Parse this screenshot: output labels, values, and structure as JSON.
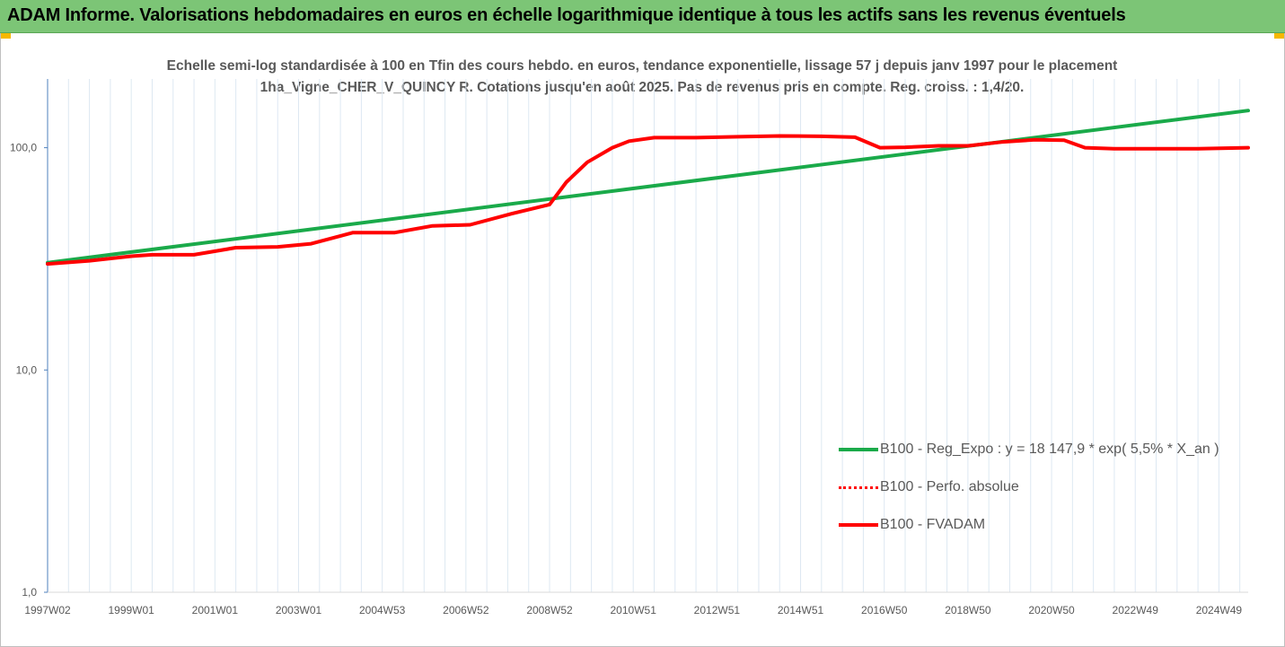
{
  "banner": {
    "title": "ADAM Informe. Valorisations hebdomadaires en euros en échelle logarithmique identique à tous les actifs sans les revenus éventuels",
    "color": "#7cc576"
  },
  "chart_data": {
    "type": "line",
    "title": "Echelle semi-log standardisée à 100 en Tfin des cours hebdo. en euros, tendance exponentielle, lissage 57 j depuis janv 1997 pour le placement 1ha_Vigne_CHER_V_QUINCY R. Cotations jusqu'en août 2025. Pas de revenus pris en compte. Reg. croiss. : 1,4/20.",
    "y_scale": "log",
    "ylim": [
      1,
      200
    ],
    "y_ticks": [
      {
        "value": 100,
        "label": "100,0"
      },
      {
        "value": 10,
        "label": "10,0"
      },
      {
        "value": 1,
        "label": "1,0"
      }
    ],
    "xlim": [
      1997.0,
      2025.7
    ],
    "x_ticks": [
      {
        "value": 1997.0,
        "label": "1997W02"
      },
      {
        "value": 1999.0,
        "label": "1999W01"
      },
      {
        "value": 2001.0,
        "label": "2001W01"
      },
      {
        "value": 2003.0,
        "label": "2003W01"
      },
      {
        "value": 2005.0,
        "label": "2004W53"
      },
      {
        "value": 2007.0,
        "label": "2006W52"
      },
      {
        "value": 2009.0,
        "label": "2008W52"
      },
      {
        "value": 2011.0,
        "label": "2010W51"
      },
      {
        "value": 2013.0,
        "label": "2012W51"
      },
      {
        "value": 2015.0,
        "label": "2014W51"
      },
      {
        "value": 2017.0,
        "label": "2016W50"
      },
      {
        "value": 2019.0,
        "label": "2018W50"
      },
      {
        "value": 2021.0,
        "label": "2020W50"
      },
      {
        "value": 2023.0,
        "label": "2022W49"
      },
      {
        "value": 2025.0,
        "label": "2024W49"
      }
    ],
    "grid": "vertical",
    "legend_position": "bottom-right",
    "series": [
      {
        "name": "B100 - Reg_Expo : y = 18 147,9 * exp( 5,5% *  X_an )",
        "color": "#1aaa4a",
        "style": "solid",
        "x": [
          1997.0,
          2025.7
        ],
        "y": [
          30.4,
          147
        ]
      },
      {
        "name": "B100 - Perfo. absolue",
        "color": "#ff0000",
        "style": "dotted",
        "x": [],
        "y": []
      },
      {
        "name": "B100 - FVADAM",
        "color": "#ff0000",
        "style": "solid",
        "x": [
          1997.0,
          1998.0,
          1999.0,
          1999.5,
          2000.5,
          2001.5,
          2002.5,
          2003.3,
          2004.3,
          2005.3,
          2006.2,
          2007.1,
          2008.1,
          2009.0,
          2009.4,
          2009.9,
          2010.5,
          2010.9,
          2011.5,
          2012.5,
          2013.5,
          2014.5,
          2015.5,
          2016.3,
          2016.9,
          2017.5,
          2018.3,
          2019.0,
          2019.8,
          2020.6,
          2021.3,
          2021.8,
          2022.5,
          2023.5,
          2024.5,
          2025.7
        ],
        "y": [
          30.0,
          31.0,
          32.5,
          33.0,
          33.0,
          35.5,
          35.8,
          37.0,
          41.5,
          41.5,
          44.5,
          45.0,
          50.5,
          55.5,
          70.0,
          86.0,
          100.0,
          107.0,
          111.0,
          111.0,
          112.0,
          113.0,
          112.5,
          111.5,
          100.0,
          100.5,
          102.0,
          102.0,
          106.0,
          108.5,
          108.0,
          100.0,
          99.0,
          99.0,
          99.0,
          100.0
        ]
      }
    ]
  }
}
